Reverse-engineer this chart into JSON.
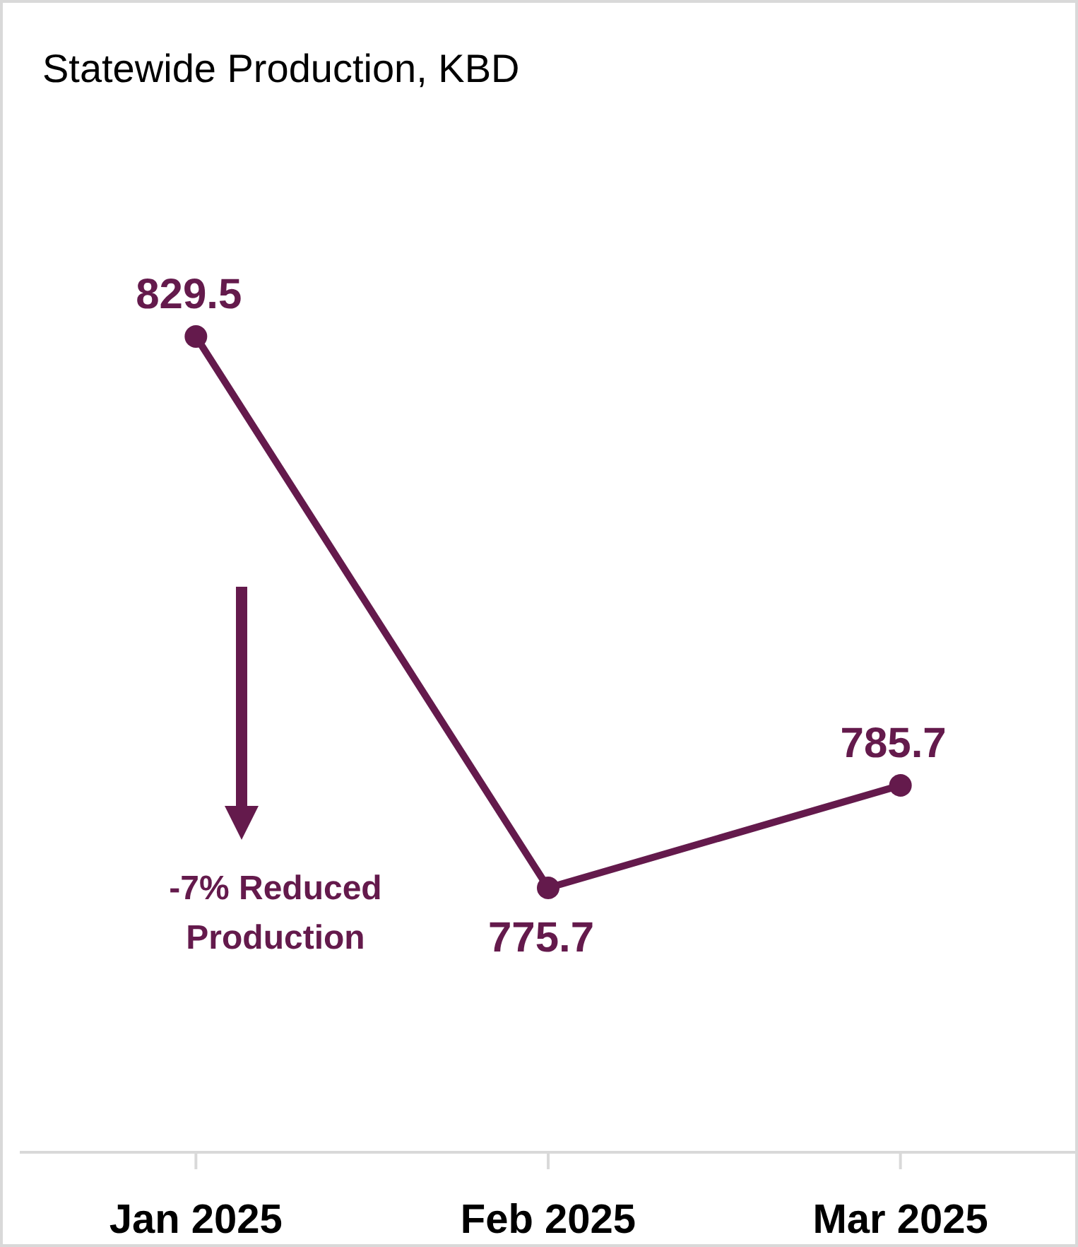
{
  "chart_data": {
    "type": "line",
    "title": "Statewide Production, KBD",
    "categories": [
      "Jan 2025",
      "Feb 2025",
      "Mar 2025"
    ],
    "series": [
      {
        "color": "#641a4c",
        "values": [
          829.5,
          775.7,
          785.7
        ]
      }
    ],
    "data_labels": true,
    "marker": "circle",
    "line_style": "solid",
    "tick_labels": "x",
    "annotations": [
      "-7% Reduced Production"
    ]
  }
}
